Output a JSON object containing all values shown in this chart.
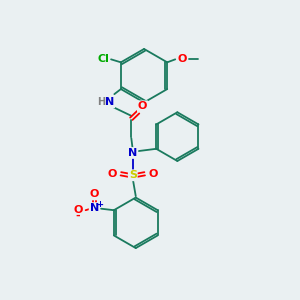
{
  "bg_color": "#eaf0f2",
  "atom_colors": {
    "C": "#1a7a5e",
    "N": "#0000cc",
    "O": "#ff0000",
    "S": "#cccc00",
    "Cl": "#00aa00",
    "H": "#808080"
  },
  "bond_color": "#1a7a5e",
  "bond_lw": 1.3
}
